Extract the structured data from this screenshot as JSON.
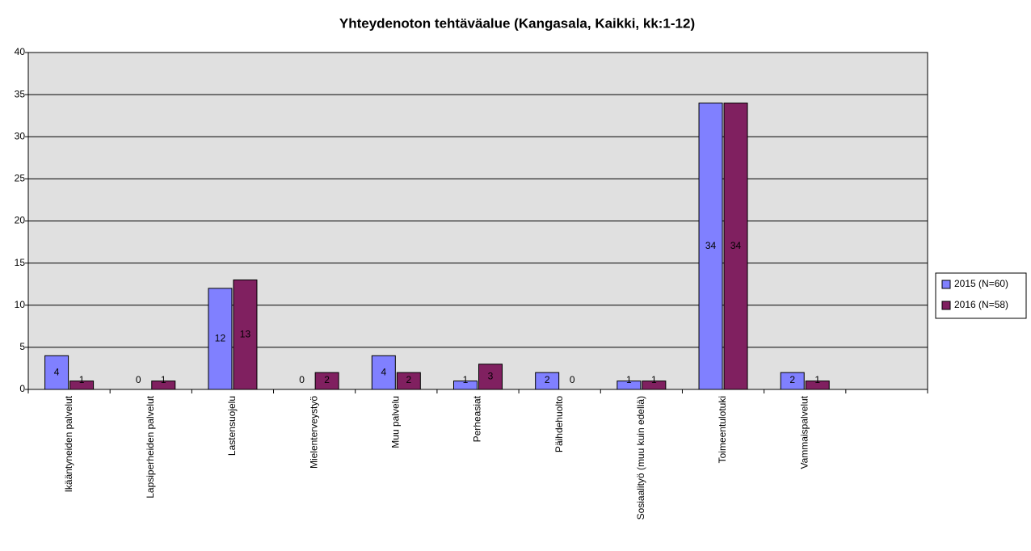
{
  "chart_data": {
    "type": "bar",
    "title": "Yhteydenoton tehtäväalue (Kangasala, Kaikki, kk:1-12)",
    "categories": [
      "Ikääntyneiden palvelut",
      "Lapsiperheiden palvelut",
      "Lastensuojelu",
      "Mielenterveystyö",
      "Muu palvelu",
      "Perheasiat",
      "Päihdehuolto",
      "Sosiaalityö (muu kuin edellä)",
      "Toimeentulotuki",
      "Vammaispalvelut",
      null
    ],
    "series": [
      {
        "name": "2015 (N=60)",
        "color": "#8080ff",
        "values": [
          4,
          0,
          12,
          0,
          4,
          1,
          2,
          1,
          34,
          2,
          null
        ]
      },
      {
        "name": "2016 (N=58)",
        "color": "#802060",
        "values": [
          1,
          1,
          13,
          2,
          2,
          3,
          0,
          1,
          34,
          1,
          null
        ]
      }
    ],
    "ylim": [
      0,
      40
    ],
    "yticks": [
      0,
      5,
      10,
      15,
      20,
      25,
      30,
      35,
      40
    ],
    "grid": true,
    "legend": "right"
  }
}
